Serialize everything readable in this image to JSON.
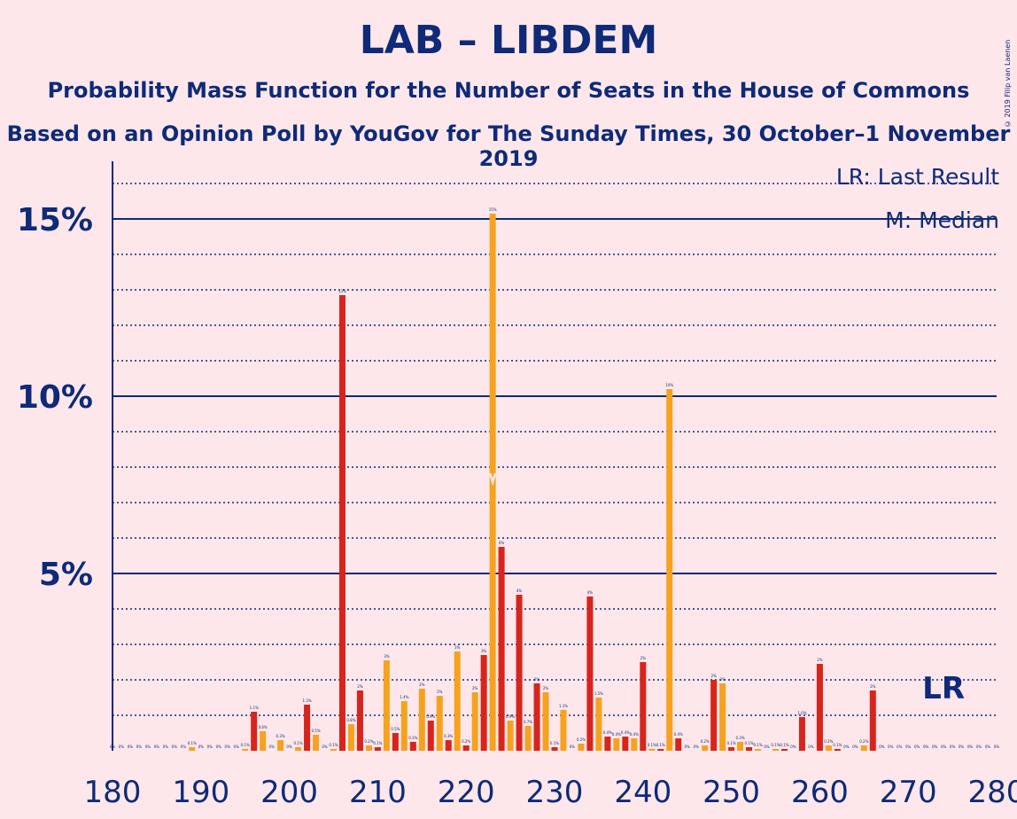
{
  "title": "LAB – LIBDEM",
  "subtitle": "Probability Mass Function for the Number of Seats in the House of Commons",
  "subtitle2": "Based on an Opinion Poll by YouGov for The Sunday Times, 30 October–1 November 2019",
  "copyright": "© 2019 Filip van Laenen",
  "legend": {
    "last_result": "LR: Last Result",
    "median": "M: Median"
  },
  "lr_marker": "LR",
  "colors": {
    "red": "#D8241C",
    "orange": "#F6A21E",
    "navy": "#0E2A78",
    "background": "#FDE7EA"
  },
  "chart_data": {
    "type": "bar",
    "xlabel": "",
    "ylabel": "",
    "xlim": [
      180,
      280
    ],
    "ylim": [
      0,
      16.5
    ],
    "x_ticks": [
      180,
      190,
      200,
      210,
      220,
      230,
      240,
      250,
      260,
      270,
      280
    ],
    "y_ticks": [
      {
        "value": 5,
        "label": "5%"
      },
      {
        "value": 10,
        "label": "10%"
      },
      {
        "value": 15,
        "label": "15%"
      }
    ],
    "median": 223,
    "last_result": 275,
    "bars": [
      {
        "x": 180,
        "y": 0,
        "label": "0%"
      },
      {
        "x": 181,
        "y": 0,
        "label": "0%"
      },
      {
        "x": 182,
        "y": 0,
        "label": "0%"
      },
      {
        "x": 183,
        "y": 0,
        "label": "0%"
      },
      {
        "x": 184,
        "y": 0,
        "label": "0%"
      },
      {
        "x": 185,
        "y": 0,
        "label": "0%"
      },
      {
        "x": 186,
        "y": 0,
        "label": "0%"
      },
      {
        "x": 187,
        "y": 0,
        "label": "0%"
      },
      {
        "x": 188,
        "y": 0,
        "label": "0%"
      },
      {
        "x": 189,
        "y": 0.1,
        "label": "0.1%"
      },
      {
        "x": 190,
        "y": 0,
        "label": "0%"
      },
      {
        "x": 191,
        "y": 0,
        "label": "0%"
      },
      {
        "x": 192,
        "y": 0,
        "label": "0%"
      },
      {
        "x": 193,
        "y": 0,
        "label": "0%"
      },
      {
        "x": 194,
        "y": 0,
        "label": "0%"
      },
      {
        "x": 195,
        "y": 0.05,
        "label": "0.1%"
      },
      {
        "x": 196,
        "y": 1.1,
        "label": "1.1%"
      },
      {
        "x": 197,
        "y": 0.55,
        "label": "0.6%"
      },
      {
        "x": 198,
        "y": 0,
        "label": "0%"
      },
      {
        "x": 199,
        "y": 0.3,
        "label": "0.3%"
      },
      {
        "x": 200,
        "y": 0,
        "label": "0%"
      },
      {
        "x": 201,
        "y": 0.1,
        "label": "0.1%"
      },
      {
        "x": 202,
        "y": 1.3,
        "label": "1.3%"
      },
      {
        "x": 203,
        "y": 0.45,
        "label": "0.5%"
      },
      {
        "x": 204,
        "y": 0,
        "label": "0%"
      },
      {
        "x": 205,
        "y": 0.05,
        "label": "0.1%"
      },
      {
        "x": 206,
        "y": 12.85,
        "label": "13%"
      },
      {
        "x": 207,
        "y": 0.75,
        "label": "0.8%"
      },
      {
        "x": 208,
        "y": 1.7,
        "label": "2%"
      },
      {
        "x": 209,
        "y": 0.15,
        "label": "0.2%"
      },
      {
        "x": 210,
        "y": 0.1,
        "label": "0.1%"
      },
      {
        "x": 211,
        "y": 2.55,
        "label": "3%"
      },
      {
        "x": 212,
        "y": 0.5,
        "label": "0.5%"
      },
      {
        "x": 213,
        "y": 1.4,
        "label": "1.4%"
      },
      {
        "x": 214,
        "y": 0.25,
        "label": "0.3%"
      },
      {
        "x": 215,
        "y": 1.75,
        "label": "2%"
      },
      {
        "x": 216,
        "y": 0.85,
        "label": "0.9%"
      },
      {
        "x": 217,
        "y": 1.55,
        "label": "2%"
      },
      {
        "x": 218,
        "y": 0.3,
        "label": "0.3%"
      },
      {
        "x": 219,
        "y": 2.8,
        "label": "3%"
      },
      {
        "x": 220,
        "y": 0.15,
        "label": "0.2%"
      },
      {
        "x": 221,
        "y": 1.65,
        "label": "2%"
      },
      {
        "x": 222,
        "y": 2.7,
        "label": "3%"
      },
      {
        "x": 223,
        "y": 15.15,
        "label": "15%"
      },
      {
        "x": 224,
        "y": 5.75,
        "label": "6%"
      },
      {
        "x": 225,
        "y": 0.85,
        "label": "0.9%"
      },
      {
        "x": 226,
        "y": 4.4,
        "label": "4%"
      },
      {
        "x": 227,
        "y": 0.7,
        "label": "0.7%"
      },
      {
        "x": 228,
        "y": 1.9,
        "label": "2%"
      },
      {
        "x": 229,
        "y": 1.65,
        "label": "2%"
      },
      {
        "x": 230,
        "y": 0.1,
        "label": "0.1%"
      },
      {
        "x": 231,
        "y": 1.15,
        "label": "1.1%"
      },
      {
        "x": 232,
        "y": 0,
        "label": "0%"
      },
      {
        "x": 233,
        "y": 0.2,
        "label": "0.2%"
      },
      {
        "x": 234,
        "y": 4.35,
        "label": "4%"
      },
      {
        "x": 235,
        "y": 1.5,
        "label": "1.5%"
      },
      {
        "x": 236,
        "y": 0.4,
        "label": "0.4%"
      },
      {
        "x": 237,
        "y": 0.35,
        "label": "0.4%"
      },
      {
        "x": 238,
        "y": 0.4,
        "label": "0.4%"
      },
      {
        "x": 239,
        "y": 0.35,
        "label": "0.4%"
      },
      {
        "x": 240,
        "y": 2.5,
        "label": "2%"
      },
      {
        "x": 241,
        "y": 0.05,
        "label": "0.1%"
      },
      {
        "x": 242,
        "y": 0.05,
        "label": "0.1%"
      },
      {
        "x": 243,
        "y": 10.2,
        "label": "10%"
      },
      {
        "x": 244,
        "y": 0.35,
        "label": "0.4%"
      },
      {
        "x": 245,
        "y": 0,
        "label": "0%"
      },
      {
        "x": 246,
        "y": 0,
        "label": "0%"
      },
      {
        "x": 247,
        "y": 0.15,
        "label": "0.2%"
      },
      {
        "x": 248,
        "y": 2.0,
        "label": "2%"
      },
      {
        "x": 249,
        "y": 1.9,
        "label": "2%"
      },
      {
        "x": 250,
        "y": 0.1,
        "label": "0.1%"
      },
      {
        "x": 251,
        "y": 0.25,
        "label": "0.3%"
      },
      {
        "x": 252,
        "y": 0.1,
        "label": "0.1%"
      },
      {
        "x": 253,
        "y": 0.05,
        "label": "0.1%"
      },
      {
        "x": 254,
        "y": 0,
        "label": "0%"
      },
      {
        "x": 255,
        "y": 0.05,
        "label": "0.1%"
      },
      {
        "x": 256,
        "y": 0.05,
        "label": "0.1%"
      },
      {
        "x": 257,
        "y": 0,
        "label": "0%"
      },
      {
        "x": 258,
        "y": 0.95,
        "label": "1.0%"
      },
      {
        "x": 259,
        "y": 0,
        "label": "0%"
      },
      {
        "x": 260,
        "y": 2.45,
        "label": "2%"
      },
      {
        "x": 261,
        "y": 0.15,
        "label": "0.2%"
      },
      {
        "x": 262,
        "y": 0.05,
        "label": "0.1%"
      },
      {
        "x": 263,
        "y": 0,
        "label": "0%"
      },
      {
        "x": 264,
        "y": 0,
        "label": "0%"
      },
      {
        "x": 265,
        "y": 0.15,
        "label": "0.2%"
      },
      {
        "x": 266,
        "y": 1.7,
        "label": "2%"
      },
      {
        "x": 267,
        "y": 0,
        "label": "0%"
      },
      {
        "x": 268,
        "y": 0,
        "label": "0%"
      },
      {
        "x": 269,
        "y": 0,
        "label": "0%"
      },
      {
        "x": 270,
        "y": 0,
        "label": "0%"
      },
      {
        "x": 271,
        "y": 0,
        "label": "0%"
      },
      {
        "x": 272,
        "y": 0,
        "label": "0%"
      },
      {
        "x": 273,
        "y": 0,
        "label": "0%"
      },
      {
        "x": 274,
        "y": 0,
        "label": "0%"
      },
      {
        "x": 275,
        "y": 0,
        "label": "0%"
      },
      {
        "x": 276,
        "y": 0,
        "label": "0%"
      },
      {
        "x": 277,
        "y": 0,
        "label": "0%"
      },
      {
        "x": 278,
        "y": 0,
        "label": "0%"
      },
      {
        "x": 279,
        "y": 0,
        "label": "0%"
      },
      {
        "x": 280,
        "y": 0,
        "label": "0%"
      }
    ]
  }
}
